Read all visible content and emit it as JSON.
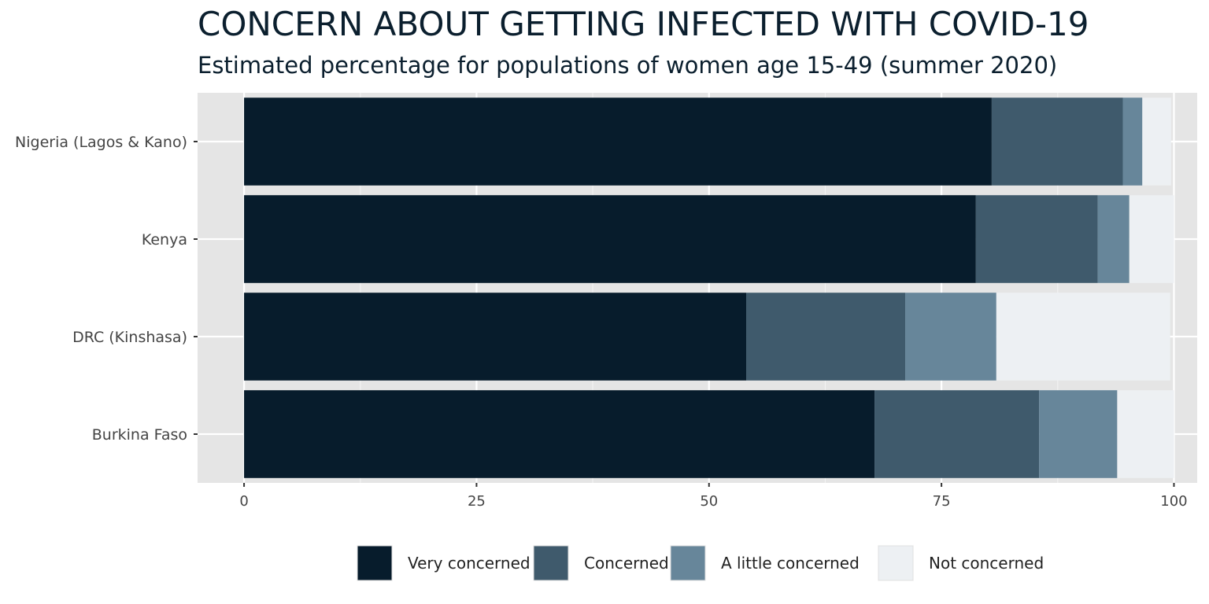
{
  "chart_data": {
    "type": "bar",
    "orientation": "horizontal",
    "stacked": true,
    "title": "CONCERN ABOUT GETTING INFECTED WITH COVID-19",
    "subtitle": "Estimated percentage for populations of women age 15-49 (summer 2020)",
    "categories": [
      "Nigeria (Lagos & Kano)",
      "Kenya",
      "DRC (Kinshasa)",
      "Burkina Faso"
    ],
    "series": [
      {
        "name": "Very concerned",
        "color": "#071c2c",
        "values": [
          80.4,
          78.7,
          54.0,
          67.8
        ]
      },
      {
        "name": "Concerned",
        "color": "#3f5a6c",
        "values": [
          14.1,
          13.1,
          17.1,
          17.7
        ]
      },
      {
        "name": "A little concerned",
        "color": "#67869a",
        "values": [
          2.1,
          3.4,
          9.8,
          8.4
        ]
      },
      {
        "name": "Not concerned",
        "color": "#edf0f3",
        "values": [
          3.1,
          4.8,
          18.7,
          6.1
        ]
      }
    ],
    "x_ticks": [
      "0",
      "25",
      "50",
      "75",
      "100"
    ],
    "xlim": [
      -5,
      102.5
    ],
    "grid": true,
    "legend_position": "bottom"
  }
}
